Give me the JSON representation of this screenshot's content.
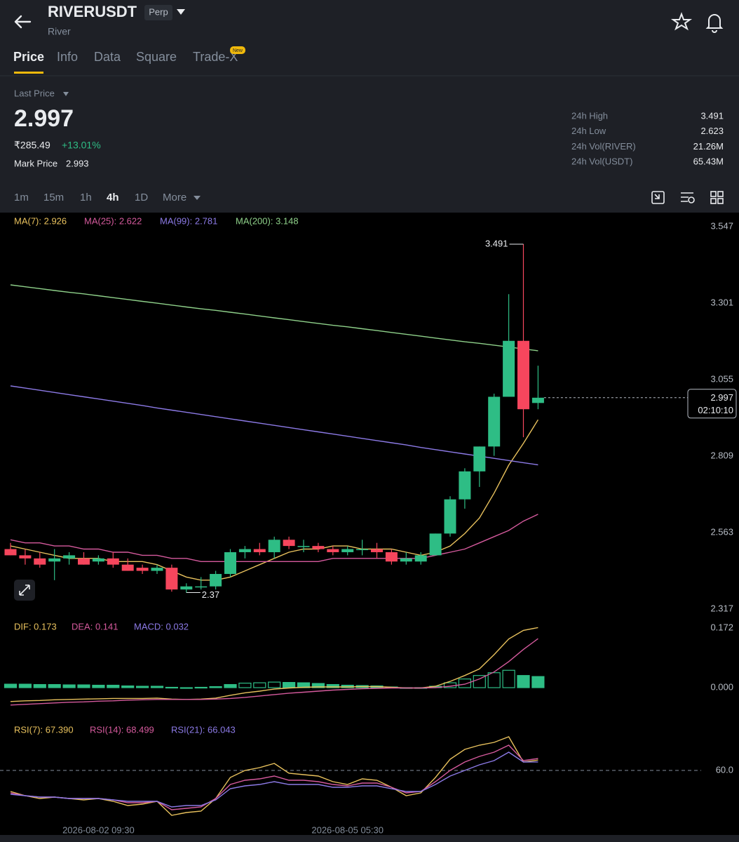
{
  "header": {
    "symbol": "RIVERUSDT",
    "badge": "Perp",
    "name": "River"
  },
  "tabs": [
    "Price",
    "Info",
    "Data",
    "Square",
    "Trade-X"
  ],
  "new_badge": "New",
  "price_block": {
    "label": "Last Price",
    "price": "2.997",
    "fiat": "₹285.49",
    "change": "+13.01%",
    "mark_label": "Mark Price",
    "mark_value": "2.993"
  },
  "stats": [
    {
      "label": "24h High",
      "value": "3.491"
    },
    {
      "label": "24h Low",
      "value": "2.623"
    },
    {
      "label": "24h Vol(RIVER)",
      "value": "21.26M"
    },
    {
      "label": "24h Vol(USDT)",
      "value": "65.43M"
    }
  ],
  "intervals": [
    "1m",
    "15m",
    "1h",
    "4h",
    "1D",
    "More"
  ],
  "chart_data": [
    {
      "type": "candlestick",
      "x": [
        null,
        null,
        null,
        null,
        null,
        null,
        "2026-08-02 09:30",
        null,
        null,
        null,
        null,
        null,
        null,
        null,
        null,
        null,
        null,
        null,
        null,
        null,
        null,
        null,
        null,
        "2026-08-05 05:30",
        null,
        null,
        null,
        null,
        null,
        null,
        null,
        null,
        null,
        null,
        null,
        null,
        null
      ],
      "open": [
        2.51,
        2.49,
        2.48,
        2.47,
        2.48,
        2.48,
        2.47,
        2.48,
        2.46,
        2.45,
        2.44,
        2.45,
        2.38,
        2.39,
        2.39,
        2.43,
        2.5,
        2.51,
        2.5,
        2.54,
        2.52,
        2.52,
        2.51,
        2.5,
        2.51,
        2.51,
        2.5,
        2.47,
        2.47,
        2.49,
        2.56,
        2.67,
        2.76,
        2.84,
        3.0,
        3.18,
        2.98
      ],
      "high": [
        2.53,
        2.51,
        2.5,
        2.51,
        2.5,
        2.5,
        2.49,
        2.5,
        2.48,
        2.46,
        2.46,
        2.46,
        2.4,
        2.42,
        2.44,
        2.51,
        2.52,
        2.53,
        2.55,
        2.55,
        2.54,
        2.53,
        2.52,
        2.52,
        2.54,
        2.53,
        2.51,
        2.5,
        2.5,
        2.56,
        2.68,
        2.77,
        2.84,
        3.01,
        3.33,
        3.491,
        3.1
      ],
      "low": [
        2.49,
        2.46,
        2.45,
        2.41,
        2.46,
        2.46,
        2.46,
        2.45,
        2.44,
        2.43,
        2.43,
        2.373,
        2.37,
        2.38,
        2.38,
        2.42,
        2.48,
        2.49,
        2.48,
        2.51,
        2.5,
        2.5,
        2.49,
        2.49,
        2.49,
        2.48,
        2.46,
        2.46,
        2.46,
        2.49,
        2.55,
        2.64,
        2.71,
        2.81,
        3.0,
        2.87,
        2.96
      ],
      "close": [
        2.49,
        2.48,
        2.46,
        2.48,
        2.49,
        2.46,
        2.48,
        2.46,
        2.44,
        2.44,
        2.45,
        2.38,
        2.39,
        2.39,
        2.43,
        2.5,
        2.51,
        2.5,
        2.54,
        2.52,
        2.52,
        2.51,
        2.5,
        2.51,
        2.51,
        2.5,
        2.47,
        2.48,
        2.49,
        2.56,
        2.67,
        2.76,
        2.84,
        3.0,
        3.18,
        2.96,
        2.997
      ],
      "up_color": "#2ebd85",
      "down_color": "#f6465d",
      "series": [
        {
          "name": "MA(7): 2.926",
          "color": "#e8c15d",
          "values": [
            2.52,
            2.51,
            2.5,
            2.49,
            2.48,
            2.48,
            2.48,
            2.47,
            2.47,
            2.47,
            2.46,
            2.44,
            2.42,
            2.41,
            2.41,
            2.42,
            2.44,
            2.46,
            2.48,
            2.5,
            2.51,
            2.51,
            2.52,
            2.52,
            2.51,
            2.51,
            2.51,
            2.5,
            2.49,
            2.5,
            2.52,
            2.56,
            2.61,
            2.69,
            2.78,
            2.85,
            2.926
          ]
        },
        {
          "name": "MA(25): 2.622",
          "color": "#d55a9d",
          "values": [
            2.54,
            2.53,
            2.53,
            2.52,
            2.52,
            2.51,
            2.51,
            2.5,
            2.5,
            2.49,
            2.49,
            2.48,
            2.48,
            2.47,
            2.47,
            2.47,
            2.47,
            2.47,
            2.47,
            2.47,
            2.47,
            2.47,
            2.48,
            2.48,
            2.48,
            2.48,
            2.48,
            2.48,
            2.48,
            2.49,
            2.5,
            2.51,
            2.53,
            2.55,
            2.57,
            2.6,
            2.622
          ]
        },
        {
          "name": "MA(99): 2.781",
          "color": "#8c7ae6",
          "values": [
            3.035,
            3.028,
            3.021,
            3.014,
            3.007,
            3.0,
            2.993,
            2.986,
            2.979,
            2.972,
            2.964,
            2.957,
            2.95,
            2.943,
            2.936,
            2.929,
            2.922,
            2.915,
            2.908,
            2.901,
            2.894,
            2.887,
            2.88,
            2.873,
            2.866,
            2.859,
            2.852,
            2.845,
            2.837,
            2.83,
            2.823,
            2.816,
            2.809,
            2.802,
            2.795,
            2.788,
            2.781
          ]
        },
        {
          "name": "MA(200): 3.148",
          "color": "#8fd18a",
          "values": [
            3.36,
            3.354,
            3.348,
            3.342,
            3.336,
            3.331,
            3.325,
            3.319,
            3.313,
            3.307,
            3.301,
            3.295,
            3.289,
            3.283,
            3.278,
            3.272,
            3.266,
            3.26,
            3.254,
            3.248,
            3.242,
            3.236,
            3.23,
            3.225,
            3.219,
            3.213,
            3.207,
            3.201,
            3.195,
            3.189,
            3.183,
            3.177,
            3.172,
            3.166,
            3.16,
            3.154,
            3.148
          ]
        }
      ],
      "ylim": [
        2.29,
        3.588
      ],
      "yticks": [
        3.547,
        3.301,
        3.055,
        2.809,
        2.563,
        2.317
      ],
      "last_price": 2.997,
      "countdown": "02:10:10"
    },
    {
      "type": "macd",
      "ylim": [
        -0.101,
        0.192
      ],
      "yticks": [
        0.172,
        {
          "value": 0,
          "label": "0.000"
        }
      ],
      "series": [
        {
          "name": "DIF: 0.173",
          "color": "#e8c15d",
          "values": [
            -0.04,
            -0.038,
            -0.037,
            -0.035,
            -0.034,
            -0.033,
            -0.032,
            -0.031,
            -0.031,
            -0.031,
            -0.03,
            -0.033,
            -0.034,
            -0.033,
            -0.03,
            -0.022,
            -0.015,
            -0.01,
            -0.004,
            -0.001,
            0.001,
            0.002,
            0.002,
            0.002,
            0.003,
            0.003,
            0.001,
            -0.001,
            -0.001,
            0.004,
            0.018,
            0.035,
            0.054,
            0.095,
            0.14,
            0.165,
            0.173
          ]
        },
        {
          "name": "DEA: 0.141",
          "color": "#d55a9d",
          "values": [
            -0.05,
            -0.048,
            -0.046,
            -0.044,
            -0.042,
            -0.041,
            -0.039,
            -0.038,
            -0.036,
            -0.035,
            -0.034,
            -0.034,
            -0.034,
            -0.034,
            -0.033,
            -0.031,
            -0.028,
            -0.024,
            -0.02,
            -0.016,
            -0.013,
            -0.01,
            -0.007,
            -0.005,
            -0.003,
            -0.002,
            -0.001,
            -0.001,
            -0.001,
            0.0,
            0.004,
            0.01,
            0.025,
            0.045,
            0.075,
            0.11,
            0.141
          ]
        }
      ],
      "histogram": {
        "name": "MACD: 0.032",
        "color": "#8c7ae6",
        "up_color": "#2ebd85",
        "down_color": "#f6465d",
        "values": [
          0.01,
          0.01,
          0.009,
          0.009,
          0.008,
          0.008,
          0.007,
          0.007,
          0.005,
          0.004,
          0.004,
          0.001,
          0.0,
          0.001,
          0.003,
          0.009,
          0.013,
          0.014,
          0.016,
          0.015,
          0.014,
          0.012,
          0.009,
          0.007,
          0.006,
          0.005,
          0.002,
          0.0,
          0.0,
          0.004,
          0.014,
          0.025,
          0.035,
          0.043,
          0.05,
          0.035,
          0.032
        ]
      }
    },
    {
      "type": "rsi",
      "ylim": [
        21.5,
        94
      ],
      "yticks": [
        {
          "value": 60,
          "label": "60.0"
        }
      ],
      "series": [
        {
          "name": "RSI(7): 67.390",
          "color": "#e8c15d",
          "values": [
            45,
            42,
            40,
            41,
            40,
            39,
            40,
            38,
            35,
            36,
            38,
            28,
            30,
            31,
            40,
            55,
            60,
            62,
            65,
            58,
            57,
            56,
            52,
            50,
            54,
            53,
            48,
            42,
            44,
            55,
            68,
            75,
            78,
            80,
            84,
            66,
            67.39
          ]
        },
        {
          "name": "RSI(14): 68.499",
          "color": "#d55a9d",
          "values": [
            44,
            42,
            41,
            41,
            40,
            40,
            40,
            39,
            37,
            37,
            38,
            32,
            33,
            34,
            40,
            50,
            53,
            54,
            56,
            53,
            53,
            52,
            50,
            49,
            51,
            51,
            48,
            44,
            45,
            52,
            60,
            66,
            70,
            73,
            78,
            67,
            68.499
          ]
        },
        {
          "name": "RSI(21): 66.043",
          "color": "#8c7ae6",
          "values": [
            43,
            42,
            41,
            41,
            40,
            40,
            40,
            39,
            38,
            38,
            38,
            34,
            35,
            35,
            39,
            47,
            49,
            50,
            52,
            50,
            50,
            50,
            48,
            48,
            49,
            49,
            47,
            45,
            45,
            50,
            56,
            60,
            64,
            67,
            73,
            66,
            66.043
          ]
        }
      ]
    }
  ]
}
